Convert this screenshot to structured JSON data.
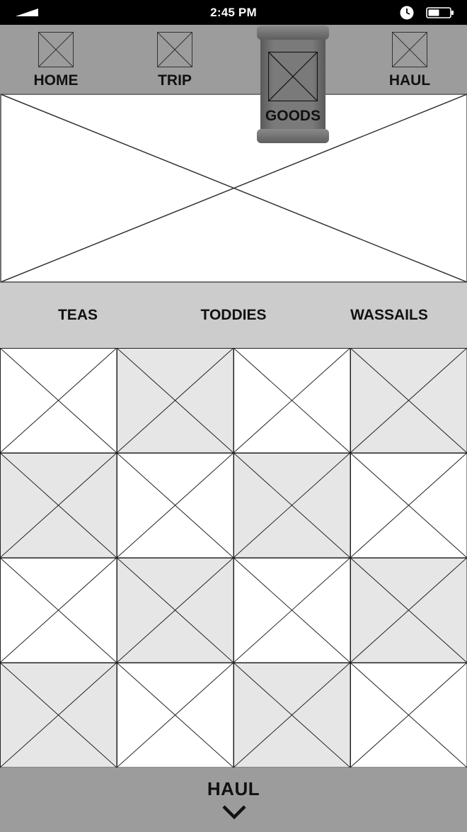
{
  "status_bar": {
    "time": "2:45 PM",
    "icons": [
      "signal-icon",
      "clock-icon",
      "battery-icon"
    ]
  },
  "nav": {
    "items": [
      {
        "label": "HOME",
        "icon": "image-placeholder-icon"
      },
      {
        "label": "TRIP",
        "icon": "image-placeholder-icon"
      },
      {
        "label": "GOODS",
        "icon": "image-placeholder-icon",
        "active": true
      },
      {
        "label": "HAUL",
        "icon": "image-placeholder-icon"
      }
    ]
  },
  "categories": [
    {
      "label": "TEAS"
    },
    {
      "label": "TODDIES"
    },
    {
      "label": "WASSAILS"
    }
  ],
  "grid": {
    "columns": 4,
    "rows": 4,
    "tile_icon": "image-placeholder-icon"
  },
  "bottom_bar": {
    "label": "HAUL",
    "icon": "chevron-down-icon"
  },
  "colors": {
    "status_bar": "#000000",
    "nav_background": "#9c9c9c",
    "active_tab": "#6e6e6e",
    "category_background": "#cccccc",
    "tile_light": "#ffffff",
    "tile_shaded": "#e6e6e6",
    "bottom_bar": "#9c9c9c"
  }
}
